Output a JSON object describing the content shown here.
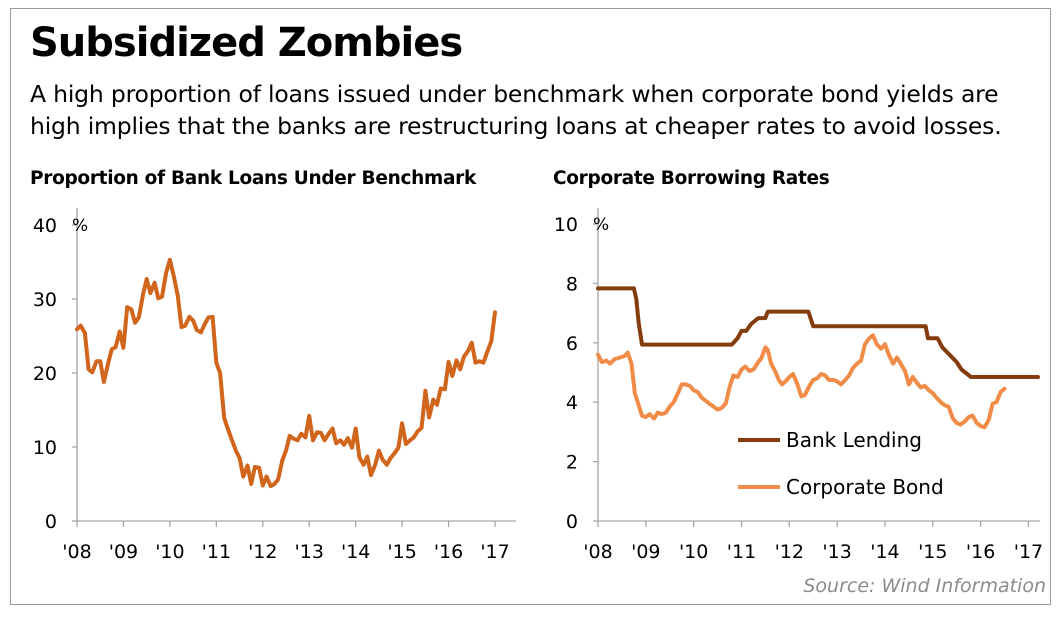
{
  "title": "Subsidized Zombies",
  "subtitle": "A high proportion of loans issued under benchmark when corporate bond yields are high implies that the banks are restructuring loans at cheaper rates to avoid losses.",
  "source": "Source: Wind Information",
  "chart_data": [
    {
      "type": "line",
      "title": "Proportion of Bank Loans Under Benchmark",
      "ylabel": "%",
      "ylim": [
        0,
        40
      ],
      "yticks": [
        "0",
        "10",
        "20",
        "30",
        "40"
      ],
      "xlim": [
        2008,
        2017.15
      ],
      "xticks": [
        "'08",
        "'09",
        "'10",
        "'11",
        "'12",
        "'13",
        "'14",
        "'15",
        "'16",
        "'17"
      ],
      "grid": false,
      "legend": "none",
      "series": [
        {
          "color": "#d0651b",
          "points": [
            [
              2008.0,
              25.9
            ],
            [
              2008.08,
              26.4
            ],
            [
              2008.17,
              25.4
            ],
            [
              2008.25,
              20.5
            ],
            [
              2008.33,
              20.1
            ],
            [
              2008.42,
              21.6
            ],
            [
              2008.5,
              21.6
            ],
            [
              2008.58,
              18.8
            ],
            [
              2008.67,
              21.3
            ],
            [
              2008.75,
              23.2
            ],
            [
              2008.83,
              23.5
            ],
            [
              2008.92,
              25.6
            ],
            [
              2009.0,
              23.4
            ],
            [
              2009.08,
              28.9
            ],
            [
              2009.17,
              28.6
            ],
            [
              2009.25,
              26.8
            ],
            [
              2009.33,
              27.5
            ],
            [
              2009.42,
              30.6
            ],
            [
              2009.5,
              32.7
            ],
            [
              2009.58,
              30.8
            ],
            [
              2009.67,
              32.2
            ],
            [
              2009.75,
              30.1
            ],
            [
              2009.83,
              30.3
            ],
            [
              2009.92,
              33.6
            ],
            [
              2010.0,
              35.3
            ],
            [
              2010.08,
              33.2
            ],
            [
              2010.17,
              30.4
            ],
            [
              2010.25,
              26.2
            ],
            [
              2010.33,
              26.4
            ],
            [
              2010.42,
              27.6
            ],
            [
              2010.5,
              27.1
            ],
            [
              2010.58,
              25.8
            ],
            [
              2010.67,
              25.5
            ],
            [
              2010.75,
              26.6
            ],
            [
              2010.83,
              27.5
            ],
            [
              2010.92,
              27.6
            ],
            [
              2011.0,
              21.4
            ],
            [
              2011.08,
              20.0
            ],
            [
              2011.17,
              13.9
            ],
            [
              2011.25,
              12.4
            ],
            [
              2011.33,
              11.0
            ],
            [
              2011.42,
              9.5
            ],
            [
              2011.5,
              8.5
            ],
            [
              2011.58,
              6.0
            ],
            [
              2011.67,
              7.5
            ],
            [
              2011.75,
              5.0
            ],
            [
              2011.83,
              7.3
            ],
            [
              2011.92,
              7.2
            ],
            [
              2012.0,
              4.8
            ],
            [
              2012.08,
              6.0
            ],
            [
              2012.17,
              4.7
            ],
            [
              2012.25,
              5.0
            ],
            [
              2012.33,
              5.6
            ],
            [
              2012.42,
              8.2
            ],
            [
              2012.5,
              9.5
            ],
            [
              2012.58,
              11.5
            ],
            [
              2012.67,
              11.1
            ],
            [
              2012.75,
              10.9
            ],
            [
              2012.83,
              11.8
            ],
            [
              2012.92,
              11.3
            ],
            [
              2013.0,
              14.2
            ],
            [
              2013.08,
              10.9
            ],
            [
              2013.17,
              12.0
            ],
            [
              2013.25,
              11.9
            ],
            [
              2013.33,
              10.9
            ],
            [
              2013.42,
              11.8
            ],
            [
              2013.5,
              12.5
            ],
            [
              2013.58,
              10.5
            ],
            [
              2013.67,
              10.9
            ],
            [
              2013.75,
              10.3
            ],
            [
              2013.83,
              11.2
            ],
            [
              2013.92,
              9.9
            ],
            [
              2014.0,
              12.5
            ],
            [
              2014.08,
              8.6
            ],
            [
              2014.17,
              7.6
            ],
            [
              2014.25,
              8.7
            ],
            [
              2014.33,
              6.2
            ],
            [
              2014.42,
              7.6
            ],
            [
              2014.5,
              9.5
            ],
            [
              2014.58,
              8.3
            ],
            [
              2014.67,
              7.6
            ],
            [
              2014.75,
              8.5
            ],
            [
              2014.83,
              9.1
            ],
            [
              2014.92,
              9.9
            ],
            [
              2015.0,
              13.2
            ],
            [
              2015.08,
              10.4
            ],
            [
              2015.17,
              10.9
            ],
            [
              2015.25,
              11.3
            ],
            [
              2015.33,
              12.1
            ],
            [
              2015.42,
              12.6
            ],
            [
              2015.5,
              17.6
            ],
            [
              2015.58,
              14.0
            ],
            [
              2015.67,
              16.4
            ],
            [
              2015.75,
              15.7
            ],
            [
              2015.83,
              17.9
            ],
            [
              2015.92,
              17.8
            ],
            [
              2016.0,
              21.5
            ],
            [
              2016.08,
              19.6
            ],
            [
              2016.17,
              21.7
            ],
            [
              2016.25,
              20.5
            ],
            [
              2016.33,
              22.2
            ],
            [
              2016.42,
              23.0
            ],
            [
              2016.5,
              24.1
            ],
            [
              2016.58,
              21.4
            ],
            [
              2016.67,
              21.6
            ],
            [
              2016.75,
              21.4
            ],
            [
              2016.83,
              22.8
            ],
            [
              2016.92,
              24.3
            ],
            [
              2017.0,
              28.2
            ]
          ]
        }
      ]
    },
    {
      "type": "line",
      "title": "Corporate Borrowing Rates",
      "ylabel": "%",
      "ylim": [
        0,
        10
      ],
      "yticks": [
        "0",
        "2",
        "4",
        "6",
        "8",
        "10"
      ],
      "xlim": [
        2008,
        2017.2
      ],
      "xticks": [
        "'08",
        "'09",
        "'10",
        "'11",
        "'12",
        "'13",
        "'14",
        "'15",
        "'16",
        "'17"
      ],
      "grid": false,
      "legend": "center",
      "series": [
        {
          "name": "Bank Lending",
          "color": "#843c0c",
          "points": [
            [
              2008.0,
              7.83
            ],
            [
              2008.75,
              7.83
            ],
            [
              2008.8,
              7.47
            ],
            [
              2008.85,
              6.66
            ],
            [
              2008.92,
              5.94
            ],
            [
              2010.8,
              5.94
            ],
            [
              2010.92,
              6.16
            ],
            [
              2011.0,
              6.4
            ],
            [
              2011.1,
              6.4
            ],
            [
              2011.2,
              6.63
            ],
            [
              2011.35,
              6.83
            ],
            [
              2011.5,
              6.83
            ],
            [
              2011.55,
              7.05
            ],
            [
              2012.4,
              7.05
            ],
            [
              2012.5,
              6.56
            ],
            [
              2014.85,
              6.56
            ],
            [
              2014.9,
              6.15
            ],
            [
              2015.1,
              6.15
            ],
            [
              2015.2,
              5.85
            ],
            [
              2015.35,
              5.6
            ],
            [
              2015.5,
              5.35
            ],
            [
              2015.6,
              5.1
            ],
            [
              2015.8,
              4.85
            ],
            [
              2017.2,
              4.85
            ]
          ]
        },
        {
          "name": "Corporate Bond",
          "color": "#f08c48",
          "points": [
            [
              2008.0,
              5.6
            ],
            [
              2008.08,
              5.35
            ],
            [
              2008.17,
              5.4
            ],
            [
              2008.25,
              5.3
            ],
            [
              2008.35,
              5.45
            ],
            [
              2008.45,
              5.5
            ],
            [
              2008.55,
              5.55
            ],
            [
              2008.62,
              5.67
            ],
            [
              2008.7,
              5.3
            ],
            [
              2008.77,
              4.3
            ],
            [
              2008.85,
              3.9
            ],
            [
              2008.92,
              3.55
            ],
            [
              2009.0,
              3.5
            ],
            [
              2009.08,
              3.6
            ],
            [
              2009.17,
              3.45
            ],
            [
              2009.25,
              3.65
            ],
            [
              2009.33,
              3.6
            ],
            [
              2009.42,
              3.65
            ],
            [
              2009.5,
              3.85
            ],
            [
              2009.58,
              4.0
            ],
            [
              2009.67,
              4.3
            ],
            [
              2009.75,
              4.6
            ],
            [
              2009.83,
              4.6
            ],
            [
              2009.92,
              4.55
            ],
            [
              2010.0,
              4.4
            ],
            [
              2010.08,
              4.35
            ],
            [
              2010.17,
              4.15
            ],
            [
              2010.25,
              4.05
            ],
            [
              2010.33,
              3.95
            ],
            [
              2010.42,
              3.85
            ],
            [
              2010.5,
              3.75
            ],
            [
              2010.58,
              3.8
            ],
            [
              2010.67,
              3.95
            ],
            [
              2010.75,
              4.5
            ],
            [
              2010.83,
              4.9
            ],
            [
              2010.92,
              4.85
            ],
            [
              2011.0,
              5.1
            ],
            [
              2011.08,
              5.2
            ],
            [
              2011.17,
              5.05
            ],
            [
              2011.25,
              5.1
            ],
            [
              2011.33,
              5.3
            ],
            [
              2011.42,
              5.5
            ],
            [
              2011.5,
              5.85
            ],
            [
              2011.55,
              5.75
            ],
            [
              2011.62,
              5.3
            ],
            [
              2011.7,
              5.05
            ],
            [
              2011.78,
              4.75
            ],
            [
              2011.85,
              4.6
            ],
            [
              2011.92,
              4.7
            ],
            [
              2012.0,
              4.85
            ],
            [
              2012.08,
              4.95
            ],
            [
              2012.17,
              4.6
            ],
            [
              2012.25,
              4.2
            ],
            [
              2012.33,
              4.25
            ],
            [
              2012.42,
              4.55
            ],
            [
              2012.5,
              4.75
            ],
            [
              2012.58,
              4.8
            ],
            [
              2012.67,
              4.95
            ],
            [
              2012.75,
              4.9
            ],
            [
              2012.83,
              4.75
            ],
            [
              2012.92,
              4.75
            ],
            [
              2013.0,
              4.7
            ],
            [
              2013.08,
              4.6
            ],
            [
              2013.17,
              4.75
            ],
            [
              2013.25,
              4.9
            ],
            [
              2013.33,
              5.15
            ],
            [
              2013.42,
              5.3
            ],
            [
              2013.5,
              5.4
            ],
            [
              2013.58,
              5.95
            ],
            [
              2013.67,
              6.15
            ],
            [
              2013.75,
              6.25
            ],
            [
              2013.83,
              5.95
            ],
            [
              2013.92,
              5.8
            ],
            [
              2014.0,
              5.95
            ],
            [
              2014.08,
              5.6
            ],
            [
              2014.17,
              5.3
            ],
            [
              2014.25,
              5.5
            ],
            [
              2014.33,
              5.3
            ],
            [
              2014.42,
              5.05
            ],
            [
              2014.5,
              4.6
            ],
            [
              2014.58,
              4.85
            ],
            [
              2014.67,
              4.65
            ],
            [
              2014.75,
              4.5
            ],
            [
              2014.83,
              4.55
            ],
            [
              2014.92,
              4.4
            ],
            [
              2015.0,
              4.3
            ],
            [
              2015.08,
              4.15
            ],
            [
              2015.17,
              4.0
            ],
            [
              2015.25,
              3.9
            ],
            [
              2015.33,
              3.85
            ],
            [
              2015.42,
              3.45
            ],
            [
              2015.5,
              3.3
            ],
            [
              2015.58,
              3.25
            ],
            [
              2015.67,
              3.35
            ],
            [
              2015.75,
              3.5
            ],
            [
              2015.83,
              3.55
            ],
            [
              2015.92,
              3.3
            ],
            [
              2016.0,
              3.2
            ],
            [
              2016.08,
              3.15
            ],
            [
              2016.17,
              3.4
            ],
            [
              2016.25,
              3.95
            ],
            [
              2016.33,
              4.0
            ],
            [
              2016.42,
              4.35
            ],
            [
              2016.5,
              4.45
            ]
          ]
        }
      ]
    }
  ]
}
